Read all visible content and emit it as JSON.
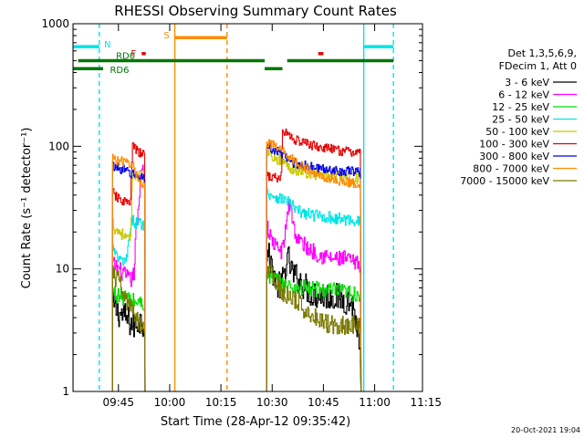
{
  "chart_data": {
    "type": "line",
    "title": "RHESSI Observing Summary Count Rates",
    "xlabel": "Start Time (28-Apr-12 09:35:42)",
    "ylabel": "Count Rate (s⁻¹ detector⁻¹)",
    "yscale": "log",
    "ylim": [
      1,
      1000
    ],
    "xlim_minutes": [
      571.7,
      674.0
    ],
    "x_ticks": [
      {
        "label": "09:45",
        "minute": 585
      },
      {
        "label": "10:00",
        "minute": 600
      },
      {
        "label": "10:15",
        "minute": 615
      },
      {
        "label": "10:30",
        "minute": 630
      },
      {
        "label": "10:45",
        "minute": 645
      },
      {
        "label": "11:00",
        "minute": 660
      },
      {
        "label": "11:15",
        "minute": 675
      }
    ],
    "y_ticks": [
      {
        "label": "1",
        "value": 1
      },
      {
        "label": "10",
        "value": 10
      },
      {
        "label": "100",
        "value": 100
      },
      {
        "label": "1000",
        "value": 1000
      }
    ],
    "legend": {
      "placement": "right",
      "header": [
        "Det 1,3,5,6,9,",
        "FDecim 1, Att 0"
      ],
      "entries": [
        {
          "label": "3 - 6 keV",
          "color": "#000000"
        },
        {
          "label": "6 - 12 keV",
          "color": "#ff00ff"
        },
        {
          "label": "12 - 25 keV",
          "color": "#00dd00"
        },
        {
          "label": "25 - 50 keV",
          "color": "#00e5e5"
        },
        {
          "label": "50 - 100 keV",
          "color": "#c8c800"
        },
        {
          "label": "100 - 300 keV",
          "color": "#e60000"
        },
        {
          "label": "300 - 800 keV",
          "color": "#0000e6"
        },
        {
          "label": "800 - 7000 keV",
          "color": "#ff8c00"
        },
        {
          "label": "7000 - 15000 keV",
          "color": "#7a7a00"
        }
      ]
    },
    "flags": [
      {
        "label": "N",
        "color": "#00e5e5",
        "y": 650,
        "segments": [
          [
            571.7,
            579.4
          ],
          [
            656.8,
            665.5
          ]
        ]
      },
      {
        "label": "S",
        "color": "#ff8c00",
        "y": 770,
        "segments": [
          [
            601.5,
            616.8
          ]
        ]
      },
      {
        "label": "F",
        "color": "#e60000",
        "y": 570,
        "segments": [
          [
            591.8,
            593
          ],
          [
            643.5,
            645
          ]
        ]
      },
      {
        "label": "RD0",
        "color": "#007700",
        "y": 500,
        "segments": [
          [
            573.2,
            601.5
          ],
          [
            601.5,
            627.8
          ],
          [
            634.4,
            665.5
          ]
        ]
      },
      {
        "label": "RD6",
        "color": "#007700",
        "y": 430,
        "segments": [
          [
            571.7,
            580.5
          ],
          [
            627.8,
            633
          ]
        ]
      }
    ],
    "vertical_markers": [
      {
        "minute": 571.7,
        "color": "#00e5e5",
        "style": "solid"
      },
      {
        "minute": 579.4,
        "color": "#00e5e5",
        "style": "dashed"
      },
      {
        "minute": 601.5,
        "color": "#ff8c00",
        "style": "solid"
      },
      {
        "minute": 616.8,
        "color": "#ff8c00",
        "style": "dashed"
      },
      {
        "minute": 656.8,
        "color": "#00e5e5",
        "style": "solid"
      },
      {
        "minute": 665.5,
        "color": "#00e5e5",
        "style": "dashed"
      }
    ],
    "data_segments": [
      [
        583.3,
        592.8
      ],
      [
        628.4,
        656.0
      ]
    ],
    "series": [
      {
        "name": "3 - 6 keV",
        "color": "#000000",
        "noise": 0.12,
        "points": [
          [
            583.3,
            5
          ],
          [
            584.5,
            4.5
          ],
          [
            587,
            4
          ],
          [
            589.5,
            3.4
          ],
          [
            591,
            3.8
          ],
          [
            592.8,
            3.6
          ],
          [
            628.4,
            14
          ],
          [
            630,
            10
          ],
          [
            631.5,
            7.5
          ],
          [
            632.5,
            7
          ],
          [
            633.8,
            10
          ],
          [
            634.7,
            12
          ],
          [
            636,
            9
          ],
          [
            638,
            8
          ],
          [
            641,
            6.5
          ],
          [
            644,
            6
          ],
          [
            648,
            6
          ],
          [
            652,
            5.5
          ],
          [
            653.5,
            5.2
          ],
          [
            655,
            3
          ],
          [
            656,
            1.4
          ]
        ]
      },
      {
        "name": "6 - 12 keV",
        "color": "#ff00ff",
        "noise": 0.07,
        "points": [
          [
            583.3,
            11
          ],
          [
            585,
            10
          ],
          [
            586.5,
            9
          ],
          [
            588.5,
            8
          ],
          [
            589.5,
            9
          ],
          [
            590,
            20
          ],
          [
            590.8,
            28
          ],
          [
            591.4,
            60
          ],
          [
            592,
            70
          ],
          [
            592.8,
            55
          ],
          [
            628.4,
            22
          ],
          [
            629.5,
            18
          ],
          [
            631,
            15
          ],
          [
            633,
            14
          ],
          [
            633.8,
            20
          ],
          [
            634.5,
            30
          ],
          [
            635.3,
            35
          ],
          [
            636,
            24
          ],
          [
            637,
            18
          ],
          [
            640,
            15
          ],
          [
            644,
            13
          ],
          [
            648,
            12
          ],
          [
            652,
            12
          ],
          [
            654,
            11
          ],
          [
            656,
            11
          ]
        ]
      },
      {
        "name": "12 - 25 keV",
        "color": "#00dd00",
        "noise": 0.07,
        "points": [
          [
            583.3,
            6.5
          ],
          [
            585,
            6
          ],
          [
            587,
            5.8
          ],
          [
            589,
            5.5
          ],
          [
            591,
            5.3
          ],
          [
            592.8,
            5.2
          ],
          [
            628.4,
            9
          ],
          [
            629.5,
            8.5
          ],
          [
            631,
            8
          ],
          [
            633,
            7.5
          ],
          [
            635,
            7.2
          ],
          [
            638,
            7
          ],
          [
            642,
            6.8
          ],
          [
            646,
            6.7
          ],
          [
            650,
            6.5
          ],
          [
            653,
            6.3
          ],
          [
            656,
            6.2
          ]
        ]
      },
      {
        "name": "25 - 50 keV",
        "color": "#00e5e5",
        "noise": 0.05,
        "points": [
          [
            583.3,
            15
          ],
          [
            584,
            13
          ],
          [
            585,
            12
          ],
          [
            587,
            11
          ],
          [
            589,
            25
          ],
          [
            590,
            24
          ],
          [
            592.8,
            23
          ],
          [
            628.4,
            42
          ],
          [
            630,
            40
          ],
          [
            632,
            38
          ],
          [
            634.5,
            36
          ],
          [
            637,
            30
          ],
          [
            640,
            28
          ],
          [
            644,
            27
          ],
          [
            648,
            26
          ],
          [
            652,
            25
          ],
          [
            654,
            25
          ],
          [
            656,
            24
          ]
        ]
      },
      {
        "name": "50 - 100 keV",
        "color": "#c8c800",
        "noise": 0.05,
        "points": [
          [
            583.3,
            24
          ],
          [
            584,
            21
          ],
          [
            585.5,
            20
          ],
          [
            587,
            18
          ],
          [
            588.5,
            17
          ],
          [
            589,
            55
          ],
          [
            590,
            60
          ],
          [
            591,
            57
          ],
          [
            592.8,
            56
          ],
          [
            628.4,
            95
          ],
          [
            630,
            85
          ],
          [
            632,
            78
          ],
          [
            634,
            72
          ],
          [
            636,
            66
          ],
          [
            639,
            62
          ],
          [
            642,
            60
          ],
          [
            646,
            58
          ],
          [
            650,
            56
          ],
          [
            654,
            55
          ],
          [
            656,
            55
          ]
        ]
      },
      {
        "name": "100 - 300 keV",
        "color": "#e60000",
        "noise": 0.04,
        "points": [
          [
            583.3,
            42
          ],
          [
            584.5,
            38
          ],
          [
            586,
            36
          ],
          [
            587.5,
            35
          ],
          [
            588.5,
            34
          ],
          [
            589,
            100
          ],
          [
            590,
            95
          ],
          [
            591,
            88
          ],
          [
            592.8,
            85
          ],
          [
            628.4,
            60
          ],
          [
            629.5,
            56
          ],
          [
            631,
            55
          ],
          [
            632.5,
            54
          ],
          [
            633,
            130
          ],
          [
            634,
            130
          ],
          [
            636,
            115
          ],
          [
            640,
            105
          ],
          [
            644,
            98
          ],
          [
            648,
            94
          ],
          [
            652,
            90
          ],
          [
            656,
            89
          ]
        ]
      },
      {
        "name": "300 - 800 keV",
        "color": "#0000e6",
        "noise": 0.04,
        "points": [
          [
            583.3,
            70
          ],
          [
            584.5,
            67
          ],
          [
            586,
            65
          ],
          [
            587.5,
            62
          ],
          [
            588.5,
            60
          ],
          [
            589,
            60
          ],
          [
            590,
            57
          ],
          [
            591,
            56
          ],
          [
            592.8,
            56
          ],
          [
            628.4,
            100
          ],
          [
            630,
            95
          ],
          [
            631.5,
            90
          ],
          [
            633,
            85
          ],
          [
            634,
            80
          ],
          [
            636,
            74
          ],
          [
            639,
            70
          ],
          [
            642,
            67
          ],
          [
            646,
            65
          ],
          [
            650,
            63
          ],
          [
            654,
            62
          ],
          [
            656,
            62
          ]
        ]
      },
      {
        "name": "800 - 7000 keV",
        "color": "#ff8c00",
        "noise": 0.04,
        "points": [
          [
            583.3,
            80
          ],
          [
            585,
            76
          ],
          [
            587,
            74
          ],
          [
            589,
            72
          ],
          [
            590,
            60
          ],
          [
            591,
            52
          ],
          [
            592.8,
            48
          ],
          [
            628.4,
            110
          ],
          [
            630,
            102
          ],
          [
            632,
            95
          ],
          [
            634,
            88
          ],
          [
            636,
            78
          ],
          [
            639,
            68
          ],
          [
            642,
            60
          ],
          [
            646,
            55
          ],
          [
            650,
            52
          ],
          [
            654,
            50
          ],
          [
            656,
            50
          ]
        ]
      },
      {
        "name": "7000 - 15000 keV",
        "color": "#7a7a00",
        "noise": 0.08,
        "points": [
          [
            583.3,
            9
          ],
          [
            585,
            8
          ],
          [
            586.5,
            6
          ],
          [
            588,
            5
          ],
          [
            590,
            4
          ],
          [
            591.5,
            3.5
          ],
          [
            592.8,
            3.4
          ],
          [
            628.4,
            10
          ],
          [
            630,
            9
          ],
          [
            632,
            7
          ],
          [
            634,
            6
          ],
          [
            637,
            5.5
          ],
          [
            640,
            4.5
          ],
          [
            643,
            4
          ],
          [
            646,
            3.6
          ],
          [
            650,
            3.5
          ],
          [
            654,
            3.5
          ],
          [
            656,
            3.4
          ]
        ]
      }
    ]
  },
  "footer": {
    "timestamp": "20-Oct-2021 19:04"
  }
}
